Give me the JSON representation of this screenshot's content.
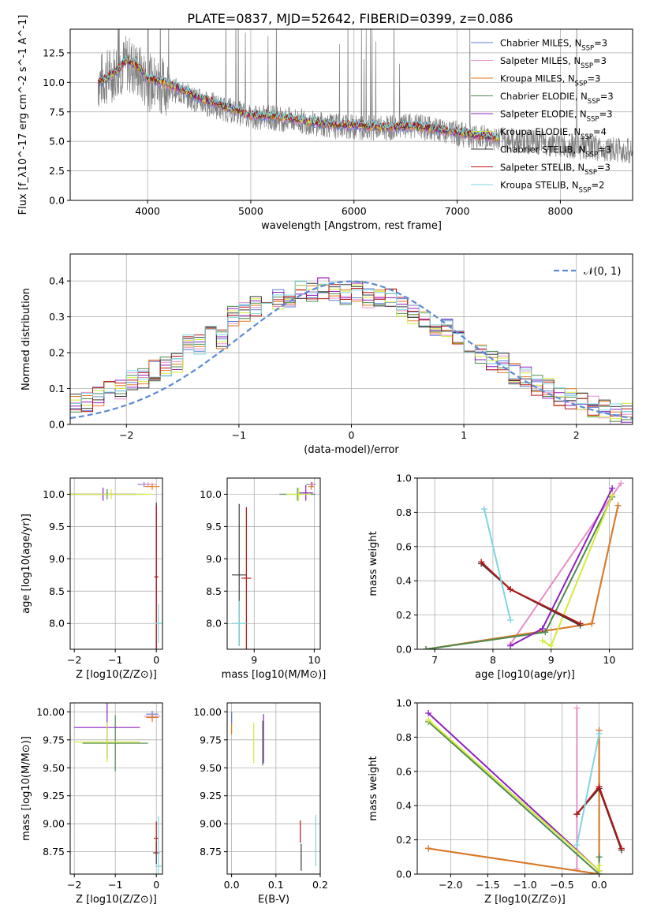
{
  "figure": {
    "title": "PLATE=0837, MJD=52642, FIBERID=0399, z=0.086"
  },
  "series": [
    {
      "name": "Chabrier MILES",
      "nssp": "3",
      "color": "#5b7fd6"
    },
    {
      "name": "Salpeter MILES",
      "nssp": "3",
      "color": "#e58fc8"
    },
    {
      "name": "Kroupa MILES",
      "nssp": "3",
      "color": "#e07b1e"
    },
    {
      "name": "Chabrier ELODIE",
      "nssp": "3",
      "color": "#4e8a4e"
    },
    {
      "name": "Salpeter ELODIE",
      "nssp": "3",
      "color": "#8e1fbf"
    },
    {
      "name": "Kroupa ELODIE",
      "nssp": "4",
      "color": "#d4ea3a"
    },
    {
      "name": "Chabrier STELIB",
      "nssp": "3",
      "color": "#3a3a3a"
    },
    {
      "name": "Salpeter STELIB",
      "nssp": "3",
      "color": "#b81414"
    },
    {
      "name": "Kroupa STELIB",
      "nssp": "2",
      "color": "#7fd6e0"
    }
  ],
  "chart_data": [
    {
      "id": "spectrum",
      "type": "line",
      "xlabel": "wavelength [Angstrom, rest frame]",
      "ylabel": "Flux [f_λ10^-17 erg cm^-2 s^-1 A^-1]",
      "xlim": [
        3250,
        8700
      ],
      "ylim": [
        0,
        14.5
      ],
      "xticks": [
        4000,
        5000,
        6000,
        7000,
        8000
      ],
      "yticks": [
        0.0,
        2.5,
        5.0,
        7.5,
        10.0,
        12.5
      ],
      "model_continuum": {
        "x": [
          3520,
          3600,
          3700,
          3800,
          3900,
          4000,
          4200,
          4500,
          4800,
          5000,
          5200,
          5500,
          5800,
          6000,
          6300,
          6600,
          6900,
          7200,
          7400
        ],
        "y": [
          10.0,
          10.3,
          11.0,
          11.9,
          11.4,
          10.4,
          9.9,
          8.7,
          7.8,
          7.2,
          7.2,
          6.8,
          6.4,
          6.4,
          6.2,
          6.3,
          5.9,
          5.5,
          5.3
        ]
      },
      "data_continuum": {
        "x": [
          3520,
          3600,
          3700,
          3800,
          3900,
          4000,
          4200,
          4500,
          4800,
          5000,
          5200,
          5500,
          5800,
          6000,
          6300,
          6600,
          6900,
          7200,
          7500,
          7800,
          8100,
          8400,
          8700
        ],
        "y": [
          10.0,
          10.4,
          11.0,
          11.6,
          11.0,
          10.0,
          9.6,
          8.4,
          7.6,
          7.1,
          7.0,
          6.7,
          6.3,
          6.2,
          6.1,
          6.3,
          5.8,
          5.4,
          5.1,
          4.9,
          4.6,
          4.4,
          4.2
        ]
      }
    },
    {
      "id": "residuals",
      "type": "line",
      "xlabel": "(data-model)/error",
      "ylabel": "Normed distribution",
      "xlim": [
        -2.5,
        2.5
      ],
      "ylim": [
        0,
        0.475
      ],
      "xticks": [
        -2,
        -1,
        0,
        1,
        2
      ],
      "yticks": [
        0.0,
        0.1,
        0.2,
        0.3,
        0.4
      ],
      "legend_label": "𝒩(0, 1)",
      "gaussian": {
        "mean": 0,
        "sigma": 1
      },
      "histogram_bins": [
        -2.5,
        -2.4,
        -2.3,
        -2.2,
        -2.1,
        -2.0,
        -1.9,
        -1.8,
        -1.7,
        -1.6,
        -1.5,
        -1.4,
        -1.3,
        -1.2,
        -1.1,
        -1.0,
        -0.9,
        -0.8,
        -0.7,
        -0.6,
        -0.5,
        -0.4,
        -0.3,
        -0.2,
        -0.1,
        0.0,
        0.1,
        0.2,
        0.3,
        0.4,
        0.5,
        0.6,
        0.7,
        0.8,
        0.9,
        1.0,
        1.1,
        1.2,
        1.3,
        1.4,
        1.5,
        1.6,
        1.7,
        1.8,
        1.9,
        2.0,
        2.1,
        2.2,
        2.3,
        2.4,
        2.5
      ],
      "histogram_shape": [
        0.06,
        0.06,
        0.08,
        0.09,
        0.1,
        0.12,
        0.13,
        0.15,
        0.16,
        0.17,
        0.23,
        0.22,
        0.26,
        0.24,
        0.3,
        0.31,
        0.33,
        0.33,
        0.35,
        0.35,
        0.37,
        0.37,
        0.38,
        0.37,
        0.36,
        0.37,
        0.35,
        0.36,
        0.35,
        0.33,
        0.31,
        0.3,
        0.27,
        0.27,
        0.24,
        0.22,
        0.2,
        0.18,
        0.17,
        0.14,
        0.13,
        0.11,
        0.1,
        0.08,
        0.07,
        0.06,
        0.05,
        0.04,
        0.03,
        0.03
      ]
    },
    {
      "id": "age_vs_Z",
      "type": "errorbar",
      "xlabel": "Z [log10(Z/Z⊙)]",
      "ylabel": "age [log10(age/yr)]",
      "xlim": [
        -2.1,
        0.15
      ],
      "ylim": [
        7.6,
        10.25
      ],
      "xticks": [
        -2,
        -1,
        0
      ],
      "yticks": [
        8.0,
        8.5,
        9.0,
        9.5,
        10.0
      ],
      "points": [
        {
          "series": 0,
          "x": -0.3,
          "y": 10.15,
          "xerr": 0.15,
          "yerr": 0.04
        },
        {
          "series": 1,
          "x": -0.2,
          "y": 10.15,
          "xerr": 0.2,
          "yerr": 0.04
        },
        {
          "series": 2,
          "x": -0.1,
          "y": 10.12,
          "xerr": 0.18,
          "yerr": 0.05
        },
        {
          "series": 3,
          "x": -1.2,
          "y": 10.0,
          "xerr": 0.9,
          "yerr": 0.08
        },
        {
          "series": 4,
          "x": -1.3,
          "y": 10.0,
          "xerr": 0.8,
          "yerr": 0.1
        },
        {
          "series": 5,
          "x": -1.1,
          "y": 10.0,
          "xerr": 1.0,
          "yerr": 0.08
        },
        {
          "series": 6,
          "x": 0.0,
          "y": 8.72,
          "xerr": 0.04,
          "yerr": 1.15
        },
        {
          "series": 7,
          "x": 0.0,
          "y": 8.72,
          "xerr": 0.05,
          "yerr": 1.1
        },
        {
          "series": 8,
          "x": 0.05,
          "y": 8.0,
          "xerr": 0.08,
          "yerr": 0.3
        }
      ]
    },
    {
      "id": "age_vs_mass",
      "type": "errorbar",
      "xlabel": "mass [log10(M/M⊙)]",
      "ylabel": "",
      "xlim": [
        8.55,
        10.1
      ],
      "ylim": [
        7.6,
        10.25
      ],
      "xticks": [
        9,
        10
      ],
      "yticks": [
        8.0,
        8.5,
        9.0,
        9.5,
        10.0
      ],
      "points": [
        {
          "series": 0,
          "x": 9.95,
          "y": 10.15,
          "xerr": 0.08,
          "yerr": 0.04
        },
        {
          "series": 1,
          "x": 9.97,
          "y": 10.15,
          "xerr": 0.06,
          "yerr": 0.04
        },
        {
          "series": 2,
          "x": 9.95,
          "y": 10.12,
          "xerr": 0.05,
          "yerr": 0.05
        },
        {
          "series": 3,
          "x": 9.72,
          "y": 10.0,
          "xerr": 0.3,
          "yerr": 0.1
        },
        {
          "series": 4,
          "x": 9.86,
          "y": 10.02,
          "xerr": 0.12,
          "yerr": 0.12
        },
        {
          "series": 5,
          "x": 9.74,
          "y": 10.0,
          "xerr": 0.2,
          "yerr": 0.1
        },
        {
          "series": 6,
          "x": 8.75,
          "y": 8.75,
          "xerr": 0.12,
          "yerr": 1.1
        },
        {
          "series": 7,
          "x": 8.87,
          "y": 8.7,
          "xerr": 0.08,
          "yerr": 1.1
        },
        {
          "series": 8,
          "x": 8.75,
          "y": 8.0,
          "xerr": 0.12,
          "yerr": 0.35
        }
      ]
    },
    {
      "id": "massweight_vs_age",
      "type": "line",
      "xlabel": "age [log10(age/yr)]",
      "ylabel": "mass weight",
      "xlim": [
        6.7,
        10.4
      ],
      "ylim": [
        0,
        1.0
      ],
      "xticks": [
        7,
        8,
        9,
        10
      ],
      "yticks": [
        0.0,
        0.2,
        0.4,
        0.6,
        0.8,
        1.0
      ],
      "lines": [
        {
          "series": 0,
          "x": [
            6.85,
            9.7,
            10.15
          ],
          "y": [
            0.0,
            0.15,
            0.84
          ]
        },
        {
          "series": 1,
          "x": [
            8.3,
            10.2
          ],
          "y": [
            0.03,
            0.97
          ]
        },
        {
          "series": 2,
          "x": [
            6.85,
            9.7,
            10.15
          ],
          "y": [
            0.0,
            0.15,
            0.84
          ]
        },
        {
          "series": 3,
          "x": [
            6.85,
            8.9,
            10.05
          ],
          "y": [
            0.0,
            0.1,
            0.89
          ]
        },
        {
          "series": 4,
          "x": [
            8.3,
            8.85,
            10.05
          ],
          "y": [
            0.02,
            0.12,
            0.94
          ]
        },
        {
          "series": 5,
          "x": [
            8.85,
            9.0,
            10.05
          ],
          "y": [
            0.05,
            0.02,
            0.9
          ]
        },
        {
          "series": 6,
          "x": [
            7.8,
            8.3,
            9.5
          ],
          "y": [
            0.5,
            0.35,
            0.14
          ]
        },
        {
          "series": 7,
          "x": [
            7.8,
            8.3,
            9.5
          ],
          "y": [
            0.51,
            0.35,
            0.15
          ]
        },
        {
          "series": 8,
          "x": [
            7.85,
            8.3
          ],
          "y": [
            0.82,
            0.17
          ]
        }
      ]
    },
    {
      "id": "mass_vs_Z",
      "type": "errorbar",
      "xlabel": "Z [log10(Z/Z⊙)]",
      "ylabel": "mass [log10(M/M⊙)]",
      "xlim": [
        -2.1,
        0.15
      ],
      "ylim": [
        8.55,
        10.08
      ],
      "xticks": [
        -2,
        -1,
        0
      ],
      "yticks": [
        8.75,
        9.0,
        9.25,
        9.5,
        9.75,
        10.0
      ],
      "points": [
        {
          "series": 0,
          "x": -0.1,
          "y": 9.98,
          "xerr": 0.15,
          "yerr": 0.03
        },
        {
          "series": 1,
          "x": -0.1,
          "y": 9.96,
          "xerr": 0.2,
          "yerr": 0.03
        },
        {
          "series": 2,
          "x": -0.1,
          "y": 9.95,
          "xerr": 0.15,
          "yerr": 0.04
        },
        {
          "series": 3,
          "x": -1.0,
          "y": 9.72,
          "xerr": 0.8,
          "yerr": 0.25
        },
        {
          "series": 4,
          "x": -1.2,
          "y": 9.86,
          "xerr": 0.8,
          "yerr": 0.28
        },
        {
          "series": 5,
          "x": -1.2,
          "y": 9.73,
          "xerr": 0.8,
          "yerr": 0.18
        },
        {
          "series": 6,
          "x": 0.0,
          "y": 8.74,
          "xerr": 0.08,
          "yerr": 0.1
        },
        {
          "series": 7,
          "x": 0.0,
          "y": 8.87,
          "xerr": 0.06,
          "yerr": 0.15
        },
        {
          "series": 8,
          "x": 0.05,
          "y": 8.62,
          "xerr": 0.08,
          "yerr": 0.45
        }
      ]
    },
    {
      "id": "mass_vs_EBV",
      "type": "errorbar",
      "xlabel": "E(B-V)",
      "ylabel": "",
      "xlim": [
        -0.01,
        0.2
      ],
      "ylim": [
        8.55,
        10.08
      ],
      "xticks": [
        0.0,
        0.1,
        0.2
      ],
      "yticks": [
        8.75,
        9.0,
        9.25,
        9.5,
        9.75,
        10.0
      ],
      "points": [
        {
          "series": 2,
          "x": 0.0,
          "y": 9.9,
          "xerr": 0.0,
          "yerr": 0.1
        },
        {
          "series": 0,
          "x": 0.0,
          "y": 9.95,
          "xerr": 0.0,
          "yerr": 0.05
        },
        {
          "series": 5,
          "x": 0.05,
          "y": 9.72,
          "xerr": 0.0,
          "yerr": 0.18
        },
        {
          "series": 3,
          "x": 0.07,
          "y": 9.72,
          "xerr": 0.0,
          "yerr": 0.2
        },
        {
          "series": 4,
          "x": 0.072,
          "y": 9.76,
          "xerr": 0.0,
          "yerr": 0.22
        },
        {
          "series": 7,
          "x": 0.155,
          "y": 8.93,
          "xerr": 0.0,
          "yerr": 0.1
        },
        {
          "series": 6,
          "x": 0.157,
          "y": 8.7,
          "xerr": 0.0,
          "yerr": 0.12
        },
        {
          "series": 8,
          "x": 0.19,
          "y": 8.85,
          "xerr": 0.0,
          "yerr": 0.23
        }
      ]
    },
    {
      "id": "massweight_vs_Z",
      "type": "line",
      "xlabel": "Z [log10(Z/Z⊙)]",
      "ylabel": "mass weight",
      "xlim": [
        -2.45,
        0.45
      ],
      "ylim": [
        0,
        1.0
      ],
      "xticks": [
        -2.0,
        -1.5,
        -1.0,
        -0.5,
        0.0
      ],
      "yticks": [
        0.0,
        0.2,
        0.4,
        0.6,
        0.8,
        1.0
      ],
      "lines": [
        {
          "series": 0,
          "x": [
            -2.3,
            0.0,
            0.0
          ],
          "y": [
            0.15,
            0.0,
            0.84
          ]
        },
        {
          "series": 1,
          "x": [
            -0.3,
            -0.3
          ],
          "y": [
            0.03,
            0.97
          ]
        },
        {
          "series": 2,
          "x": [
            -2.3,
            0.0,
            0.0
          ],
          "y": [
            0.15,
            0.0,
            0.84
          ]
        },
        {
          "series": 3,
          "x": [
            -2.3,
            0.0,
            0.0
          ],
          "y": [
            0.89,
            0.0,
            0.1
          ]
        },
        {
          "series": 4,
          "x": [
            -2.3,
            0.0,
            0.0
          ],
          "y": [
            0.94,
            0.02,
            0.02
          ]
        },
        {
          "series": 5,
          "x": [
            -2.3,
            0.0,
            0.0
          ],
          "y": [
            0.9,
            0.02,
            0.05
          ]
        },
        {
          "series": 6,
          "x": [
            -0.3,
            0.0,
            0.3
          ],
          "y": [
            0.35,
            0.5,
            0.14
          ]
        },
        {
          "series": 7,
          "x": [
            -0.3,
            0.0,
            0.3
          ],
          "y": [
            0.35,
            0.51,
            0.15
          ]
        },
        {
          "series": 8,
          "x": [
            -0.3,
            0.0
          ],
          "y": [
            0.17,
            0.82
          ]
        }
      ]
    }
  ]
}
